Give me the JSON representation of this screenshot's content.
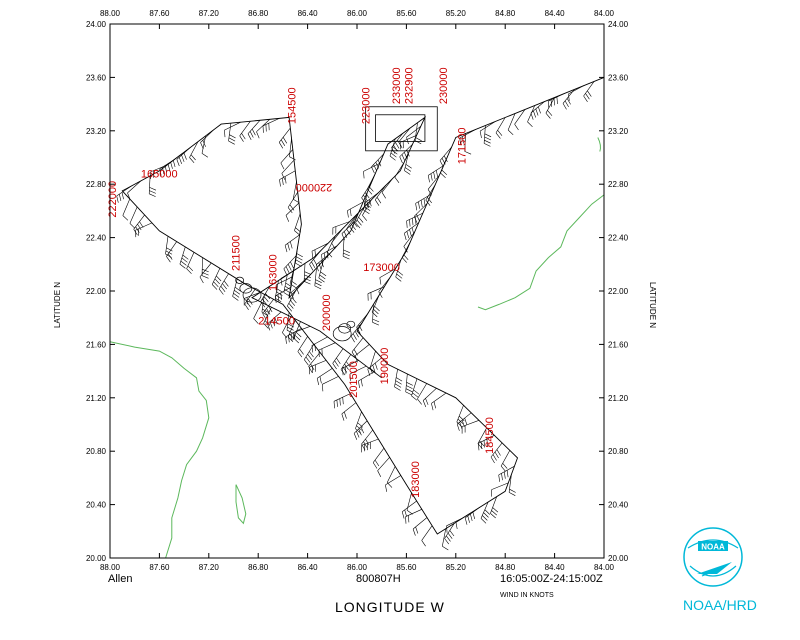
{
  "storm_name": "Allen",
  "flight_id": "800807H",
  "time_range": "16:05:00Z-24:15:00Z",
  "wind_units_note": "WIND IN KNOTS",
  "x_axis_title": "LONGITUDE   W",
  "y_axis_title_left": "LATITUDE   N",
  "y_axis_title_right": "LATITUDE   N",
  "agency": "NOAA/HRD",
  "logo_text": "NOAA",
  "x_ticks": [
    "88.00",
    "87.60",
    "87.20",
    "86.80",
    "86.40",
    "86.00",
    "85.60",
    "85.20",
    "84.80",
    "84.40",
    "84.00"
  ],
  "y_ticks": [
    "24.00",
    "23.60",
    "23.20",
    "22.80",
    "22.40",
    "22.00",
    "21.60",
    "21.20",
    "20.80",
    "20.40",
    "20.00"
  ],
  "colors": {
    "coast": "#5cb85c",
    "labels": "#cc0000",
    "logo": "#00b8d8",
    "axes": "#000000"
  },
  "chart_data": {
    "type": "map",
    "title": "Allen 800807H",
    "xlabel": "LONGITUDE W",
    "ylabel": "LATITUDE N",
    "xlim": [
      88.0,
      84.0
    ],
    "ylim": [
      20.0,
      24.0
    ],
    "track": [
      {
        "lon": 84.0,
        "lat": 23.6
      },
      {
        "lon": 85.2,
        "lat": 23.15
      },
      {
        "lon": 85.6,
        "lat": 22.3
      },
      {
        "lon": 86.0,
        "lat": 21.7
      },
      {
        "lon": 85.75,
        "lat": 21.45
      },
      {
        "lon": 85.2,
        "lat": 21.2
      },
      {
        "lon": 84.7,
        "lat": 20.75
      },
      {
        "lon": 84.8,
        "lat": 20.5
      },
      {
        "lon": 85.35,
        "lat": 20.18
      },
      {
        "lon": 85.6,
        "lat": 20.55
      },
      {
        "lon": 86.1,
        "lat": 21.3
      },
      {
        "lon": 86.6,
        "lat": 21.9
      },
      {
        "lon": 86.9,
        "lat": 22.05
      },
      {
        "lon": 87.6,
        "lat": 22.45
      },
      {
        "lon": 87.9,
        "lat": 22.75
      },
      {
        "lon": 87.6,
        "lat": 22.9
      },
      {
        "lon": 87.1,
        "lat": 23.25
      },
      {
        "lon": 86.55,
        "lat": 23.3
      },
      {
        "lon": 86.45,
        "lat": 22.5
      },
      {
        "lon": 86.55,
        "lat": 21.95
      },
      {
        "lon": 86.05,
        "lat": 22.45
      },
      {
        "lon": 85.75,
        "lat": 23.1
      },
      {
        "lon": 85.45,
        "lat": 23.3
      },
      {
        "lon": 85.65,
        "lat": 22.9
      },
      {
        "lon": 86.35,
        "lat": 22.25
      },
      {
        "lon": 86.85,
        "lat": 21.95
      },
      {
        "lon": 86.3,
        "lat": 21.7
      },
      {
        "lon": 85.8,
        "lat": 21.35
      }
    ],
    "time_labels": [
      {
        "text": "154500",
        "lon": 86.5,
        "lat": 23.25,
        "rot": -90
      },
      {
        "text": "223000",
        "lon": 85.9,
        "lat": 23.25,
        "rot": -90
      },
      {
        "text": "233000",
        "lon": 85.65,
        "lat": 23.4,
        "rot": -90
      },
      {
        "text": "232900",
        "lon": 85.55,
        "lat": 23.4,
        "rot": -90
      },
      {
        "text": "230000",
        "lon": 85.27,
        "lat": 23.4,
        "rot": -90
      },
      {
        "text": "171500",
        "lon": 85.12,
        "lat": 22.95,
        "rot": -90
      },
      {
        "text": "165000",
        "lon": 87.75,
        "lat": 22.85,
        "rot": 0
      },
      {
        "text": "222000",
        "lon": 87.95,
        "lat": 22.55,
        "rot": -90
      },
      {
        "text": "220000",
        "lon": 86.2,
        "lat": 22.8,
        "rot": 180
      },
      {
        "text": "211500",
        "lon": 86.95,
        "lat": 22.15,
        "rot": -90
      },
      {
        "text": "163000",
        "lon": 86.65,
        "lat": 22.0,
        "rot": -90
      },
      {
        "text": "173000",
        "lon": 85.95,
        "lat": 22.15,
        "rot": 0
      },
      {
        "text": "200000",
        "lon": 86.22,
        "lat": 21.7,
        "rot": -90
      },
      {
        "text": "214500",
        "lon": 86.8,
        "lat": 21.75,
        "rot": 0
      },
      {
        "text": "201500",
        "lon": 86.0,
        "lat": 21.2,
        "rot": -90
      },
      {
        "text": "190000",
        "lon": 85.75,
        "lat": 21.3,
        "rot": -90
      },
      {
        "text": "184500",
        "lon": 84.9,
        "lat": 20.78,
        "rot": -90
      },
      {
        "text": "183000",
        "lon": 85.5,
        "lat": 20.45,
        "rot": -90
      }
    ]
  }
}
